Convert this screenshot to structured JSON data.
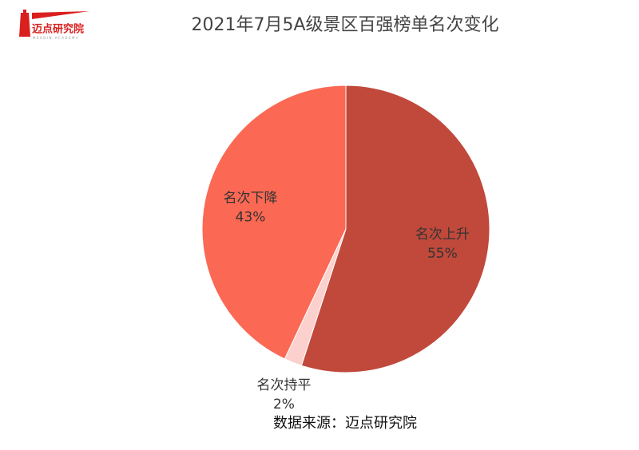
{
  "logo": {
    "name": "迈点研究院",
    "subtitle": "MEADIN ACADEMY"
  },
  "chart_data": {
    "type": "pie",
    "title": "2021年7月5A级景区百强榜单名次变化",
    "categories": [
      "名次上升",
      "名次持平",
      "名次下降"
    ],
    "values": [
      55,
      2,
      43
    ],
    "value_labels": [
      "55%",
      "2%",
      "43%"
    ],
    "colors": [
      "#c0493b",
      "#fcd0cc",
      "#fb6853"
    ],
    "source": "数据来源：迈点研究院"
  }
}
